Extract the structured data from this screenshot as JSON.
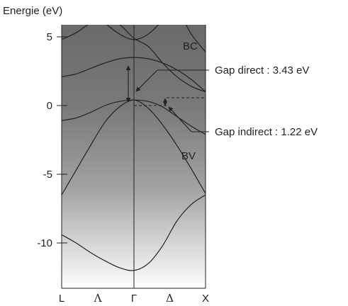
{
  "chart_data": {
    "type": "line",
    "title": "",
    "ylabel": "Energie (eV)",
    "xlabel": "",
    "ylim": [
      -13,
      7
    ],
    "yticks": [
      5,
      0,
      -5,
      -10
    ],
    "xticks": [
      "L",
      "Λ",
      "Γ",
      "Δ",
      "X"
    ],
    "region_labels": {
      "conduction": "BC",
      "valence": "BV"
    },
    "annotations": {
      "direct": "Gap direct : 3.43 eV",
      "indirect": "Gap indirect : 1.22 eV"
    },
    "gap_direct_eV": 3.43,
    "gap_indirect_eV": 1.22,
    "x_units": "k-path position: L = -1, Γ = 0, X = 1",
    "series": [
      {
        "x": [
          -1,
          -0.8,
          -0.6,
          -0.4,
          -0.2,
          0,
          0.2,
          0.4,
          0.6,
          0.8,
          1
        ],
        "y": [
          -9.4,
          -10.0,
          -10.7,
          -11.3,
          -11.8,
          -12.0,
          -11.5,
          -10.2,
          -8.4,
          -7.2,
          -6.5
        ]
      },
      {
        "x": [
          -1,
          -0.8,
          -0.6,
          -0.4,
          -0.2,
          0,
          0.2,
          0.4,
          0.6,
          0.8,
          1
        ],
        "y": [
          -6.5,
          -4.7,
          -2.9,
          -1.2,
          -0.1,
          0.4,
          -0.2,
          -1.4,
          -2.9,
          -4.6,
          -6.4
        ]
      },
      {
        "x": [
          -1,
          -0.8,
          -0.6,
          -0.4,
          -0.2,
          0,
          0.2,
          0.4,
          0.6,
          0.8,
          1
        ],
        "y": [
          -1.1,
          -0.9,
          -0.5,
          0,
          0.3,
          0.4,
          0.3,
          -0.1,
          -0.8,
          -1.5,
          -2.1
        ]
      },
      {
        "x": [
          -1,
          -0.8,
          -0.6,
          -0.4,
          -0.2,
          0,
          0.2,
          0.4,
          0.6,
          0.8,
          1
        ],
        "y": [
          2.1,
          2.3,
          2.7,
          3.1,
          3.4,
          3.5,
          3.4,
          3.1,
          2.6,
          1.9,
          1.0
        ]
      },
      {
        "x": [
          -1,
          -0.8,
          -0.6,
          -0.4,
          -0.2,
          0,
          0.2,
          0.4,
          0.6,
          0.8,
          1
        ],
        "y": [
          4.8,
          5.3,
          6.0,
          6.4,
          5.9,
          4.9,
          4.3,
          3.1,
          2.1,
          1.4,
          1.0
        ]
      },
      {
        "x": [
          -0.62,
          -0.4,
          -0.2,
          0,
          0.2,
          0.4,
          0.55
        ],
        "y": [
          7.0,
          6.0,
          5.2,
          4.8,
          5.2,
          6.2,
          7.0
        ]
      },
      {
        "x": [
          0.62,
          0.8,
          1.0
        ],
        "y": [
          7.0,
          5.2,
          3.9
        ]
      }
    ]
  }
}
